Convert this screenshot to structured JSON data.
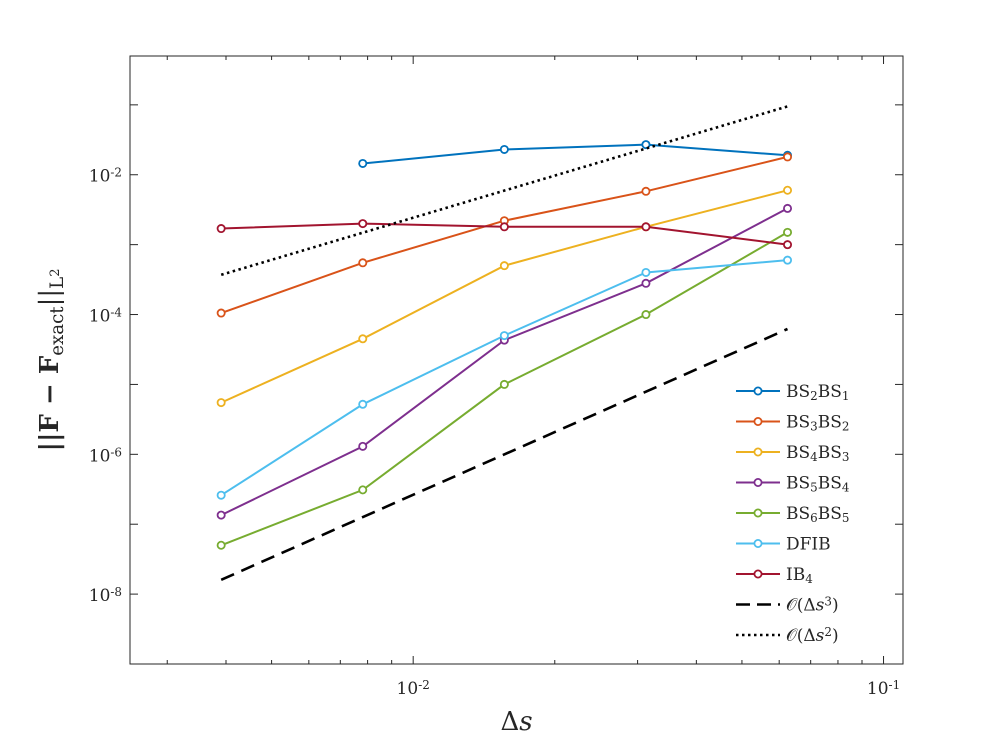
{
  "chart_data": {
    "type": "line",
    "xscale": "log",
    "yscale": "log",
    "xlim": [
      0.0025,
      0.11
    ],
    "ylim": [
      1e-09,
      0.5
    ],
    "x_ticks": [
      {
        "value": 0.01,
        "base": "10",
        "exp": "-2"
      },
      {
        "value": 0.1,
        "base": "10",
        "exp": "-1"
      }
    ],
    "y_ticks": [
      {
        "value": 1e-08,
        "base": "10",
        "exp": "-8"
      },
      {
        "value": 1e-06,
        "base": "10",
        "exp": "-6"
      },
      {
        "value": 0.0001,
        "base": "10",
        "exp": "-4"
      },
      {
        "value": 0.01,
        "base": "10",
        "exp": "-2"
      }
    ],
    "xlabel": "Δs",
    "ylabel": {
      "main": "||F − F",
      "sub1": "exact",
      "end": "||",
      "sub2": "L",
      "sup2": "2"
    },
    "series": [
      {
        "name": "BS2BS1",
        "label_parts": [
          [
            "BS",
            ""
          ],
          [
            "2",
            "sub"
          ],
          [
            "BS",
            ""
          ],
          [
            "1",
            "sub"
          ]
        ],
        "color": "#0072BD",
        "style": "solid",
        "marker": true,
        "x": [
          0.0078125,
          0.015625,
          0.03125,
          0.0625
        ],
        "y": [
          0.0145,
          0.023,
          0.027,
          0.019
        ]
      },
      {
        "name": "BS3BS2",
        "label_parts": [
          [
            "BS",
            ""
          ],
          [
            "3",
            "sub"
          ],
          [
            "BS",
            ""
          ],
          [
            "2",
            "sub"
          ]
        ],
        "color": "#D95319",
        "style": "solid",
        "marker": true,
        "x": [
          0.00390625,
          0.0078125,
          0.015625,
          0.03125,
          0.0625
        ],
        "y": [
          0.000105,
          0.00055,
          0.0022,
          0.0058,
          0.018
        ]
      },
      {
        "name": "BS4BS3",
        "label_parts": [
          [
            "BS",
            ""
          ],
          [
            "4",
            "sub"
          ],
          [
            "BS",
            ""
          ],
          [
            "3",
            "sub"
          ]
        ],
        "color": "#EDB120",
        "style": "solid",
        "marker": true,
        "x": [
          0.00390625,
          0.0078125,
          0.015625,
          0.03125,
          0.0625
        ],
        "y": [
          5.5e-06,
          4.5e-05,
          0.0005,
          0.0018,
          0.006
        ]
      },
      {
        "name": "BS5BS4",
        "label_parts": [
          [
            "BS",
            ""
          ],
          [
            "5",
            "sub"
          ],
          [
            "BS",
            ""
          ],
          [
            "4",
            "sub"
          ]
        ],
        "color": "#7E2F8E",
        "style": "solid",
        "marker": true,
        "x": [
          0.00390625,
          0.0078125,
          0.015625,
          0.03125,
          0.0625
        ],
        "y": [
          1.35e-07,
          1.3e-06,
          4.3e-05,
          0.00028,
          0.0033
        ]
      },
      {
        "name": "BS6BS5",
        "label_parts": [
          [
            "BS",
            ""
          ],
          [
            "6",
            "sub"
          ],
          [
            "BS",
            ""
          ],
          [
            "5",
            "sub"
          ]
        ],
        "color": "#77AC30",
        "style": "solid",
        "marker": true,
        "x": [
          0.00390625,
          0.0078125,
          0.015625,
          0.03125,
          0.0625
        ],
        "y": [
          5e-08,
          3.1e-07,
          1e-05,
          0.0001,
          0.0015
        ]
      },
      {
        "name": "DFIB",
        "label_parts": [
          [
            "DFIB",
            ""
          ]
        ],
        "color": "#4DBEEE",
        "style": "solid",
        "marker": true,
        "x": [
          0.00390625,
          0.0078125,
          0.015625,
          0.03125,
          0.0625
        ],
        "y": [
          2.6e-07,
          5.2e-06,
          5e-05,
          0.0004,
          0.0006
        ]
      },
      {
        "name": "IB4",
        "label_parts": [
          [
            "IB",
            ""
          ],
          [
            "4",
            "sub"
          ]
        ],
        "color": "#A2142F",
        "style": "solid",
        "marker": true,
        "x": [
          0.00390625,
          0.0078125,
          0.015625,
          0.03125,
          0.0625
        ],
        "y": [
          0.0017,
          0.002,
          0.0018,
          0.0018,
          0.001
        ]
      },
      {
        "name": "O(Δs^3)",
        "label_parts": [
          [
            "𝒪(Δ",
            ""
          ],
          [
            "s",
            "it"
          ],
          [
            "3",
            "sup"
          ],
          [
            ")",
            ""
          ]
        ],
        "color": "#000000",
        "style": "dashed",
        "marker": false,
        "x": [
          0.00390625,
          0.0625
        ],
        "y": [
          1.6e-08,
          6.2e-05
        ]
      },
      {
        "name": "O(Δs^2)",
        "label_parts": [
          [
            "𝒪(Δ",
            ""
          ],
          [
            "s",
            "it"
          ],
          [
            "2",
            "sup"
          ],
          [
            ")",
            ""
          ]
        ],
        "color": "#000000",
        "style": "dotted",
        "marker": false,
        "x": [
          0.00390625,
          0.0625
        ],
        "y": [
          0.00037,
          0.095
        ]
      }
    ],
    "legend_position": "bottom-right",
    "grid": false
  }
}
